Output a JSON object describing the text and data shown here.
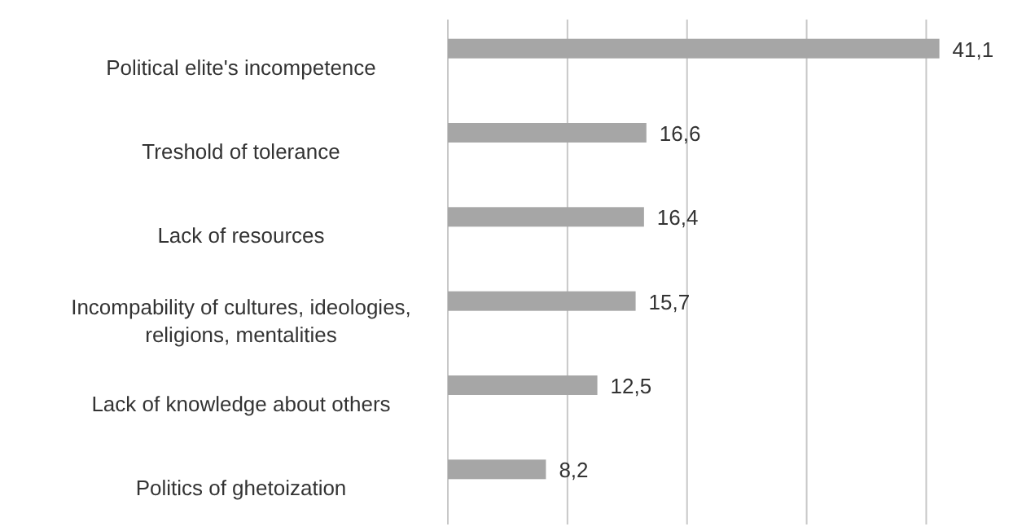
{
  "chart_data": {
    "type": "bar",
    "orientation": "horizontal",
    "categories": [
      "Political elite's incompetence",
      "Treshold of tolerance",
      "Lack of resources",
      "Incompability of cultures, ideologies, religions, mentalities",
      "Lack of knowledge about others",
      "Politics of ghetoization"
    ],
    "values": [
      41.1,
      16.6,
      16.4,
      15.7,
      12.5,
      8.2
    ],
    "value_labels": [
      "41,1",
      "16,6",
      "16,4",
      "15,7",
      "12,5",
      "8,2"
    ],
    "color": "#a6a6a6",
    "xticks": [
      {
        "value": 0,
        "label": null
      },
      {
        "value": 10,
        "label": null
      },
      {
        "value": 20,
        "label": null
      },
      {
        "value": 30,
        "label": null
      },
      {
        "value": 40,
        "label": null
      }
    ],
    "tick_labels": "y",
    "grid": "x"
  }
}
